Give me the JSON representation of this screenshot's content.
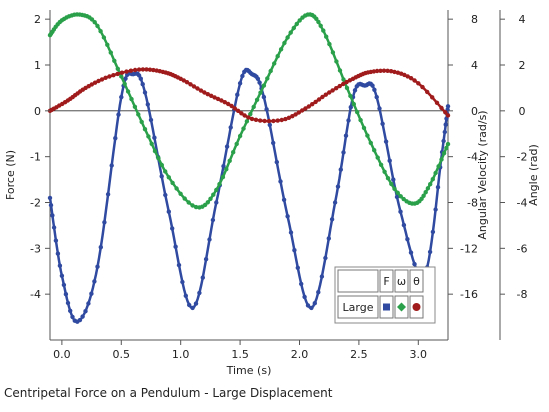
{
  "caption": "Centripetal Force on a Pendulum - Large Displacement",
  "chart_data": {
    "type": "scatter",
    "xlabel": "Time (s)",
    "y_axes": [
      {
        "id": "force",
        "label": "Force (N)",
        "range": [
          -5,
          2.2
        ],
        "ticks": [
          2,
          1,
          0,
          -1,
          -2,
          -3,
          -4
        ]
      },
      {
        "id": "omega",
        "label": "Angular Velocity (rad/s)",
        "range": [
          -20,
          8.8
        ],
        "ticks": [
          8,
          4,
          0,
          -4,
          -8,
          -12,
          -16
        ]
      },
      {
        "id": "theta",
        "label": "Angle (rad)",
        "range": [
          -10,
          4.4
        ],
        "ticks": [
          4,
          2,
          0,
          -2,
          -4,
          -6,
          -8
        ]
      }
    ],
    "xlim": [
      -0.1,
      3.25
    ],
    "xticks": [
      "0.0",
      "0.5",
      "1.0",
      "1.5",
      "2.0",
      "2.5",
      "3.0"
    ],
    "xtick_values": [
      0.0,
      0.5,
      1.0,
      1.5,
      2.0,
      2.5,
      3.0
    ],
    "series": [
      {
        "name": "F",
        "axis": "force",
        "color": "#2f4aa0",
        "marker": "square",
        "description": "Centripetal force, period ~0.96 s, peaks ~0.8 N, troughs ~-4.6 N",
        "x": [
          -0.1,
          0.0,
          0.13,
          0.3,
          0.5,
          0.6,
          0.7,
          0.9,
          1.1,
          1.3,
          1.5,
          1.6,
          1.7,
          1.9,
          2.1,
          2.3,
          2.45,
          2.55,
          2.65,
          2.85,
          3.05,
          3.2,
          3.25
        ],
        "y": [
          -1.9,
          -3.6,
          -4.6,
          -3.4,
          0.3,
          0.8,
          0.4,
          -2.2,
          -4.3,
          -2.0,
          0.6,
          0.8,
          0.3,
          -2.3,
          -4.3,
          -2.0,
          0.3,
          0.55,
          0.3,
          -2.2,
          -3.6,
          -0.9,
          0.1
        ]
      },
      {
        "name": "ω",
        "axis": "omega",
        "color": "#2aa04a",
        "marker": "diamond",
        "description": "Angular velocity, max ~8.4 rad/s, min ~-8.4 rad/s",
        "x": [
          -0.1,
          0.0,
          0.15,
          0.3,
          0.5,
          0.7,
          0.9,
          1.13,
          1.3,
          1.5,
          1.7,
          1.9,
          2.07,
          2.2,
          2.4,
          2.6,
          2.8,
          2.97,
          3.1,
          3.25
        ],
        "y": [
          6.6,
          7.9,
          8.4,
          7.4,
          3.0,
          -1.6,
          -5.8,
          -8.4,
          -6.9,
          -2.2,
          2.2,
          6.4,
          8.4,
          7.0,
          2.0,
          -2.8,
          -6.8,
          -8.1,
          -6.4,
          -2.9
        ]
      },
      {
        "name": "θ",
        "axis": "theta",
        "color": "#a01c1c",
        "marker": "circle",
        "description": "Angle, max ~1.8 rad, min ~-0.4 rad",
        "x": [
          -0.1,
          0.05,
          0.2,
          0.4,
          0.65,
          0.85,
          1.0,
          1.2,
          1.4,
          1.6,
          1.85,
          2.05,
          2.25,
          2.45,
          2.6,
          2.8,
          3.0,
          3.25
        ],
        "y": [
          0.0,
          0.45,
          1.0,
          1.5,
          1.8,
          1.7,
          1.4,
          0.8,
          0.3,
          -0.35,
          -0.4,
          0.1,
          0.8,
          1.4,
          1.7,
          1.7,
          1.2,
          -0.2
        ]
      }
    ],
    "legend": {
      "placement": "bottom-right",
      "headers": [
        "F",
        "ω",
        "θ"
      ],
      "row_label": "Large"
    },
    "grid": false
  }
}
